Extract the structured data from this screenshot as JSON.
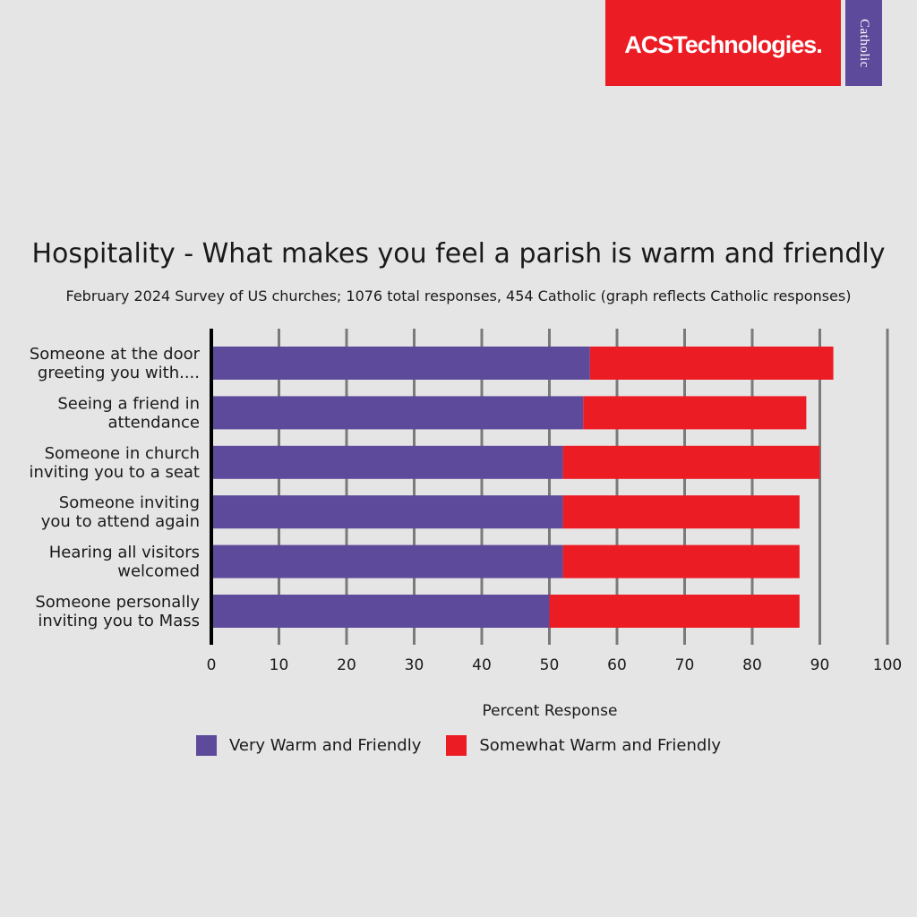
{
  "logo": {
    "text": "ACSTechnologies.",
    "color": "#ec1c24"
  },
  "badge": {
    "text": "Catholic",
    "color": "#5e4a9b"
  },
  "chart_data": {
    "type": "bar",
    "orientation": "horizontal",
    "stacked": true,
    "title": "Hospitality - What makes you feel a parish is warm and friendly",
    "subtitle": "February 2024 Survey of US churches; 1076 total responses, 454 Catholic (graph reflects Catholic responses)",
    "categories": [
      [
        "Someone at the door",
        "greeting you with...."
      ],
      [
        "Seeing a friend in",
        "attendance"
      ],
      [
        "Someone in church",
        "inviting you to a seat"
      ],
      [
        "Someone inviting ",
        "you to attend again"
      ],
      [
        "Hearing all visitors",
        "welcomed"
      ],
      [
        "Someone personally",
        "inviting you to Mass"
      ]
    ],
    "series": [
      {
        "name": "Very Warm and Friendly",
        "color": "#5e4a9b",
        "values": [
          56,
          55,
          52,
          52,
          52,
          50
        ]
      },
      {
        "name": "Somewhat Warm and Friendly",
        "color": "#ec1c24",
        "values": [
          36,
          33,
          38,
          35,
          35,
          37
        ]
      }
    ],
    "xlabel": "Percent Response",
    "xlim": [
      0,
      100
    ],
    "xticks": [
      0,
      10,
      20,
      30,
      40,
      50,
      60,
      70,
      80,
      90,
      100
    ],
    "grid": "vertical",
    "legend": "bottom"
  }
}
